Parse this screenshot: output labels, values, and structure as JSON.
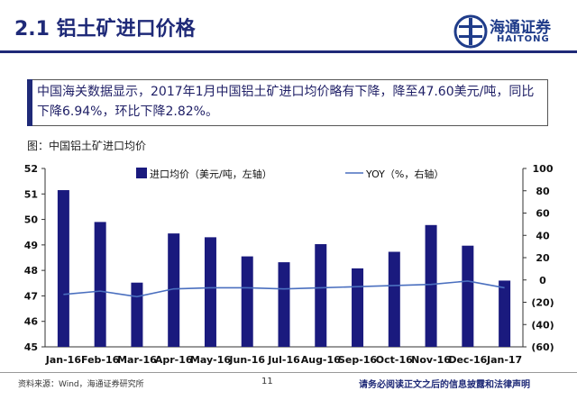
{
  "slide": {
    "title": "2.1 铝土矿进口价格",
    "logo_cn": "海通证券",
    "logo_en": "HAITONG",
    "summary": "中国海关数据显示，2017年1月中国铝土矿进口均价略有下降，降至47.60美元/吨，同比下降6.94%，环比下降2.82%。",
    "chart_caption": "图：中国铝土矿进口均价",
    "source": "资料来源：Wind，海通证券研究所",
    "page_number": "11",
    "disclaimer": "请务必阅读正文之后的信息披露和法律声明"
  },
  "colors": {
    "bar": "#1a1a7e",
    "line": "#4a6fbf",
    "title": "#1f2a78"
  },
  "chart_data": {
    "type": "bar",
    "categories": [
      "Jan-16",
      "Feb-16",
      "Mar-16",
      "Apr-16",
      "May-16",
      "Jun-16",
      "Jul-16",
      "Aug-16",
      "Sep-16",
      "Oct-16",
      "Nov-16",
      "Dec-16",
      "Jan-17"
    ],
    "series": [
      {
        "name": "进口均价（美元/吨，左轴）",
        "type": "bar",
        "axis": "left",
        "values": [
          51.15,
          49.9,
          47.52,
          49.45,
          49.3,
          48.55,
          48.32,
          49.03,
          48.08,
          48.73,
          49.78,
          48.97,
          47.6
        ]
      },
      {
        "name": "YOY（%，右轴）",
        "type": "line",
        "axis": "right",
        "values": [
          -13,
          -10,
          -15,
          -8,
          -7,
          -7,
          -8,
          -7,
          -6,
          -5,
          -4,
          -1,
          -7
        ]
      }
    ],
    "ylim_left": [
      45,
      52
    ],
    "yticks_left": [
      "45",
      "46",
      "47",
      "48",
      "49",
      "50",
      "51",
      "52"
    ],
    "ylim_right": [
      -60,
      100
    ],
    "yticks_right": [
      "(60)",
      "(40)",
      "(20)",
      "0",
      "20",
      "40",
      "60",
      "80",
      "100"
    ],
    "legend_position": "top",
    "grid": false
  }
}
